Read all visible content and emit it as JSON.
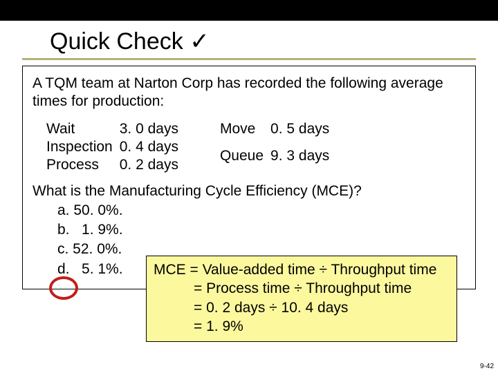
{
  "title": "Quick Check",
  "checkmark": "✓",
  "intro": "A TQM team at Narton Corp has recorded the following average times for production:",
  "times_col1": [
    {
      "label": "Wait",
      "value": "3. 0 days"
    },
    {
      "label": "Inspection",
      "value": "0. 4 days"
    },
    {
      "label": "Process",
      "value": "0. 2 days"
    }
  ],
  "times_col2": [
    {
      "label": "Move",
      "value": "0. 5 days"
    },
    {
      "label": "Queue",
      "value": "9. 3 days"
    }
  ],
  "question": "What is the Manufacturing Cycle Efficiency (MCE)?",
  "answers": {
    "a": "a. 50. 0%.",
    "b": "b.   1. 9%.",
    "c": "c. 52. 0%.",
    "d": "d.   5. 1%."
  },
  "explain": {
    "line1": "MCE = Value-added time ÷ Throughput time",
    "line2": "= Process time ÷ Throughput time",
    "line3": "= 0. 2 days ÷ 10. 4 days",
    "line4": "= 1. 9%"
  },
  "page_number": "9-42",
  "colors": {
    "underline": "#b6b07a",
    "circle": "#c41c1c",
    "highlight_bg": "#fcf89e",
    "top_bar": "#000000"
  }
}
